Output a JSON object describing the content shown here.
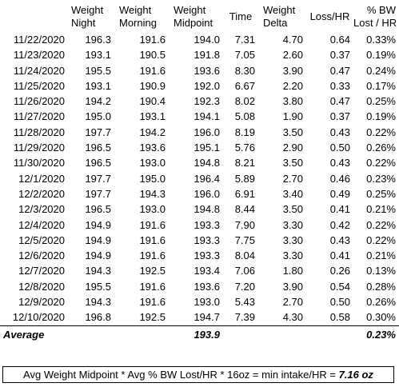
{
  "headers": {
    "weight_night": [
      "Weight",
      "Night"
    ],
    "weight_morning": [
      "Weight",
      "Morning"
    ],
    "weight_midpoint": [
      "Weight",
      "Midpoint"
    ],
    "time": "Time",
    "weight_delta": [
      "Weight",
      "Delta"
    ],
    "loss_hr": "Loss/HR",
    "pct_bw": [
      "% BW",
      "Lost / HR"
    ]
  },
  "rows": [
    {
      "date": "11/22/2020",
      "night": "196.3",
      "morning": "191.6",
      "midpoint": "194.0",
      "time": "7.31",
      "delta": "4.70",
      "loss": "0.64",
      "pct": "0.33%"
    },
    {
      "date": "11/23/2020",
      "night": "193.1",
      "morning": "190.5",
      "midpoint": "191.8",
      "time": "7.05",
      "delta": "2.60",
      "loss": "0.37",
      "pct": "0.19%"
    },
    {
      "date": "11/24/2020",
      "night": "195.5",
      "morning": "191.6",
      "midpoint": "193.6",
      "time": "8.30",
      "delta": "3.90",
      "loss": "0.47",
      "pct": "0.24%"
    },
    {
      "date": "11/25/2020",
      "night": "193.1",
      "morning": "190.9",
      "midpoint": "192.0",
      "time": "6.67",
      "delta": "2.20",
      "loss": "0.33",
      "pct": "0.17%"
    },
    {
      "date": "11/26/2020",
      "night": "194.2",
      "morning": "190.4",
      "midpoint": "192.3",
      "time": "8.02",
      "delta": "3.80",
      "loss": "0.47",
      "pct": "0.25%"
    },
    {
      "date": "11/27/2020",
      "night": "195.0",
      "morning": "193.1",
      "midpoint": "194.1",
      "time": "5.08",
      "delta": "1.90",
      "loss": "0.37",
      "pct": "0.19%"
    },
    {
      "date": "11/28/2020",
      "night": "197.7",
      "morning": "194.2",
      "midpoint": "196.0",
      "time": "8.19",
      "delta": "3.50",
      "loss": "0.43",
      "pct": "0.22%"
    },
    {
      "date": "11/29/2020",
      "night": "196.5",
      "morning": "193.6",
      "midpoint": "195.1",
      "time": "5.76",
      "delta": "2.90",
      "loss": "0.50",
      "pct": "0.26%"
    },
    {
      "date": "11/30/2020",
      "night": "196.5",
      "morning": "193.0",
      "midpoint": "194.8",
      "time": "8.21",
      "delta": "3.50",
      "loss": "0.43",
      "pct": "0.22%"
    },
    {
      "date": "12/1/2020",
      "night": "197.7",
      "morning": "195.0",
      "midpoint": "196.4",
      "time": "5.89",
      "delta": "2.70",
      "loss": "0.46",
      "pct": "0.23%"
    },
    {
      "date": "12/2/2020",
      "night": "197.7",
      "morning": "194.3",
      "midpoint": "196.0",
      "time": "6.91",
      "delta": "3.40",
      "loss": "0.49",
      "pct": "0.25%"
    },
    {
      "date": "12/3/2020",
      "night": "196.5",
      "morning": "193.0",
      "midpoint": "194.8",
      "time": "8.44",
      "delta": "3.50",
      "loss": "0.41",
      "pct": "0.21%"
    },
    {
      "date": "12/4/2020",
      "night": "194.9",
      "morning": "191.6",
      "midpoint": "193.3",
      "time": "7.90",
      "delta": "3.30",
      "loss": "0.42",
      "pct": "0.22%"
    },
    {
      "date": "12/5/2020",
      "night": "194.9",
      "morning": "191.6",
      "midpoint": "193.3",
      "time": "7.75",
      "delta": "3.30",
      "loss": "0.43",
      "pct": "0.22%"
    },
    {
      "date": "12/6/2020",
      "night": "194.9",
      "morning": "191.6",
      "midpoint": "193.3",
      "time": "8.04",
      "delta": "3.30",
      "loss": "0.41",
      "pct": "0.21%"
    },
    {
      "date": "12/7/2020",
      "night": "194.3",
      "morning": "192.5",
      "midpoint": "193.4",
      "time": "7.06",
      "delta": "1.80",
      "loss": "0.26",
      "pct": "0.13%"
    },
    {
      "date": "12/8/2020",
      "night": "195.5",
      "morning": "191.6",
      "midpoint": "193.6",
      "time": "7.20",
      "delta": "3.90",
      "loss": "0.54",
      "pct": "0.28%"
    },
    {
      "date": "12/9/2020",
      "night": "194.3",
      "morning": "191.6",
      "midpoint": "193.0",
      "time": "5.43",
      "delta": "2.70",
      "loss": "0.50",
      "pct": "0.26%"
    },
    {
      "date": "12/10/2020",
      "night": "196.8",
      "morning": "192.5",
      "midpoint": "194.7",
      "time": "7.39",
      "delta": "4.30",
      "loss": "0.58",
      "pct": "0.30%"
    }
  ],
  "average": {
    "label": "Average",
    "midpoint": "193.9",
    "pct": "0.23%"
  },
  "formula": {
    "text": "Avg Weight Midpoint * Avg % BW Lost/HR * 16oz = min intake/HR = ",
    "result": "7.16 oz"
  }
}
